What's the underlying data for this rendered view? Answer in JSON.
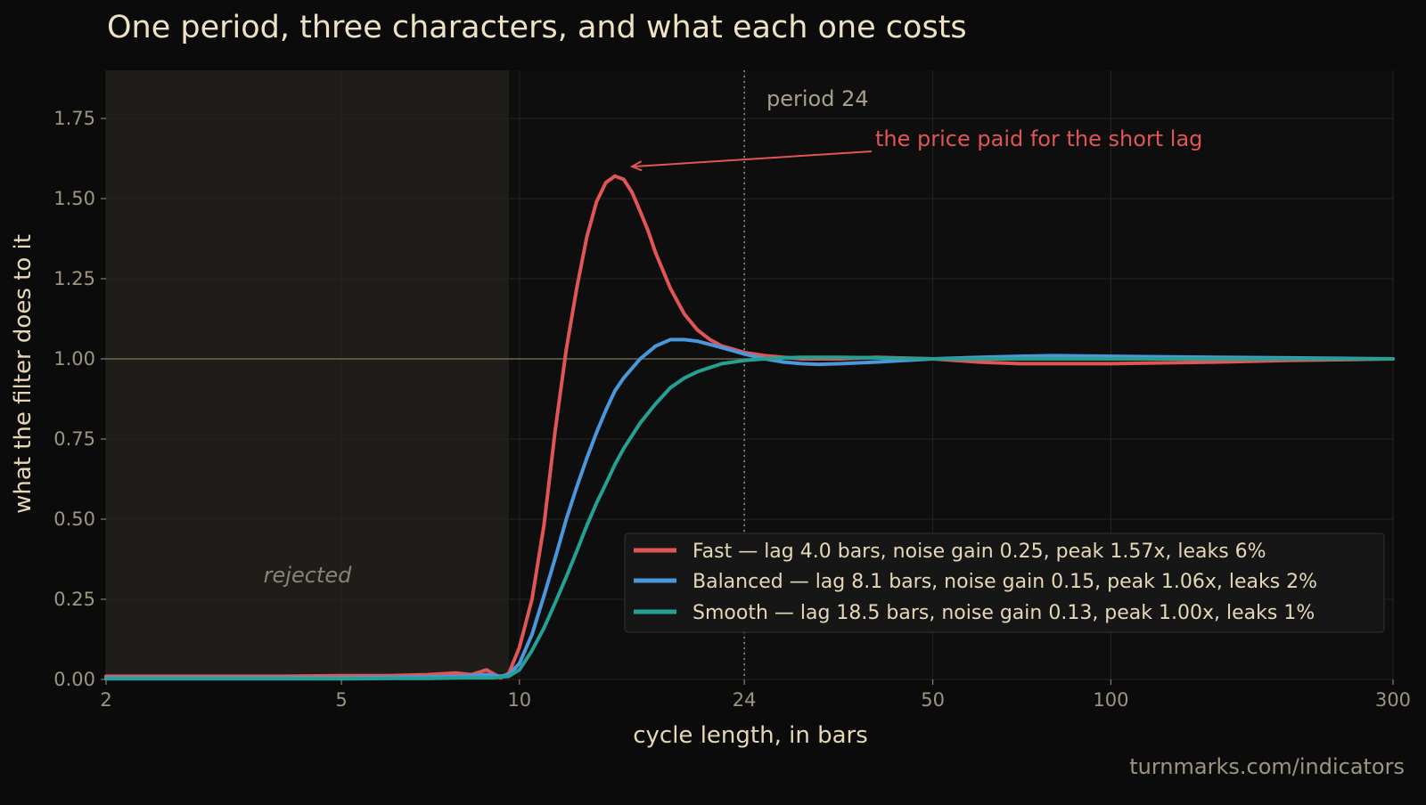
{
  "chart_data": {
    "type": "line",
    "title": "One period, three characters, and what each one costs",
    "xlabel": "cycle length, in bars",
    "ylabel": "what the filter does to it",
    "x_scale": "log",
    "xlim": [
      2,
      300
    ],
    "ylim": [
      0,
      1.9
    ],
    "x_ticks": [
      2,
      5,
      10,
      24,
      50,
      100,
      300
    ],
    "y_ticks": [
      "0.00",
      "0.25",
      "0.50",
      "0.75",
      "1.00",
      "1.25",
      "1.50",
      "1.75"
    ],
    "grid": true,
    "legend_position": "lower-right",
    "reference_line_y": 1.0,
    "vertical_marker": {
      "x": 24,
      "label": "period 24"
    },
    "rejected_band": {
      "x_from": 2,
      "x_to": 9.6,
      "label": "rejected"
    },
    "annotation": {
      "text": "the price paid for the short lag",
      "points_to": [
        15.5,
        1.6
      ],
      "color": "#e05555"
    },
    "watermark": "turnmarks.com/indicators",
    "colors": {
      "background": "#0b0b0b",
      "plot": "#0e0e0e",
      "rejected": "#1f1d1a",
      "grid": "#252423",
      "tick": "#9e9581",
      "title": "#efe2c4",
      "label": "#e6d7b6",
      "refline": "#6b6650",
      "marker": "#9a9277"
    },
    "series": [
      {
        "name": "Fast",
        "legend": "Fast  —  lag 4.0 bars, noise gain 0.25, peak 1.57x, leaks 6%",
        "color": "#e05555",
        "x": [
          2,
          3,
          4,
          5,
          6,
          7,
          7.8,
          8.3,
          8.8,
          9.3,
          9.6,
          10,
          10.5,
          11,
          11.5,
          12,
          12.5,
          13,
          13.5,
          14,
          14.5,
          15,
          15.5,
          16,
          16.5,
          17,
          18,
          19,
          20,
          21,
          22,
          23,
          24,
          25,
          26,
          28,
          30,
          35,
          40,
          50,
          60,
          70,
          80,
          100,
          150,
          200,
          300
        ],
        "y": [
          0.01,
          0.01,
          0.01,
          0.012,
          0.012,
          0.015,
          0.02,
          0.015,
          0.03,
          0.005,
          0.02,
          0.1,
          0.25,
          0.48,
          0.78,
          1.03,
          1.22,
          1.38,
          1.49,
          1.55,
          1.57,
          1.56,
          1.52,
          1.46,
          1.4,
          1.33,
          1.22,
          1.14,
          1.09,
          1.06,
          1.04,
          1.03,
          1.02,
          1.015,
          1.01,
          1.005,
          1.0,
          1.0,
          1.005,
          1.0,
          0.99,
          0.985,
          0.985,
          0.985,
          0.99,
          0.995,
          1.0
        ]
      },
      {
        "name": "Balanced",
        "legend": "Balanced  —  lag 8.1 bars, noise gain 0.15, peak 1.06x, leaks 2%",
        "color": "#4a98db",
        "x": [
          2,
          3,
          4,
          5,
          6,
          7,
          8,
          8.8,
          9.3,
          9.6,
          10,
          10.5,
          11,
          11.5,
          12,
          12.5,
          13,
          13.5,
          14,
          14.5,
          15,
          16,
          17,
          18,
          19,
          20,
          21,
          22,
          23,
          24,
          26,
          28,
          30,
          32,
          35,
          40,
          50,
          60,
          70,
          80,
          100,
          150,
          200,
          300
        ],
        "y": [
          0.005,
          0.005,
          0.005,
          0.005,
          0.006,
          0.008,
          0.01,
          0.015,
          0.01,
          0.015,
          0.05,
          0.14,
          0.26,
          0.38,
          0.5,
          0.6,
          0.69,
          0.77,
          0.84,
          0.9,
          0.94,
          1.0,
          1.04,
          1.06,
          1.06,
          1.055,
          1.045,
          1.035,
          1.025,
          1.015,
          1.0,
          0.99,
          0.985,
          0.983,
          0.985,
          0.99,
          1.0,
          1.005,
          1.008,
          1.01,
          1.008,
          1.005,
          1.003,
          1.0
        ]
      },
      {
        "name": "Smooth",
        "legend": "Smooth  —  lag 18.5 bars, noise gain 0.13, peak 1.00x, leaks 1%",
        "color": "#25a093",
        "x": [
          2,
          3,
          4,
          5,
          6,
          7,
          8,
          9,
          9.6,
          10,
          10.5,
          11,
          11.5,
          12,
          12.5,
          13,
          13.5,
          14,
          14.5,
          15,
          16,
          17,
          18,
          19,
          20,
          22,
          24,
          26,
          28,
          30,
          35,
          40,
          50,
          70,
          100,
          150,
          200,
          300
        ],
        "y": [
          0.002,
          0.002,
          0.002,
          0.002,
          0.003,
          0.003,
          0.005,
          0.005,
          0.01,
          0.03,
          0.09,
          0.16,
          0.24,
          0.32,
          0.4,
          0.48,
          0.55,
          0.61,
          0.67,
          0.72,
          0.8,
          0.86,
          0.91,
          0.94,
          0.96,
          0.985,
          0.995,
          1.0,
          1.003,
          1.005,
          1.005,
          1.003,
          1.0,
          1.0,
          1.0,
          1.0,
          1.0,
          1.0
        ]
      }
    ]
  }
}
